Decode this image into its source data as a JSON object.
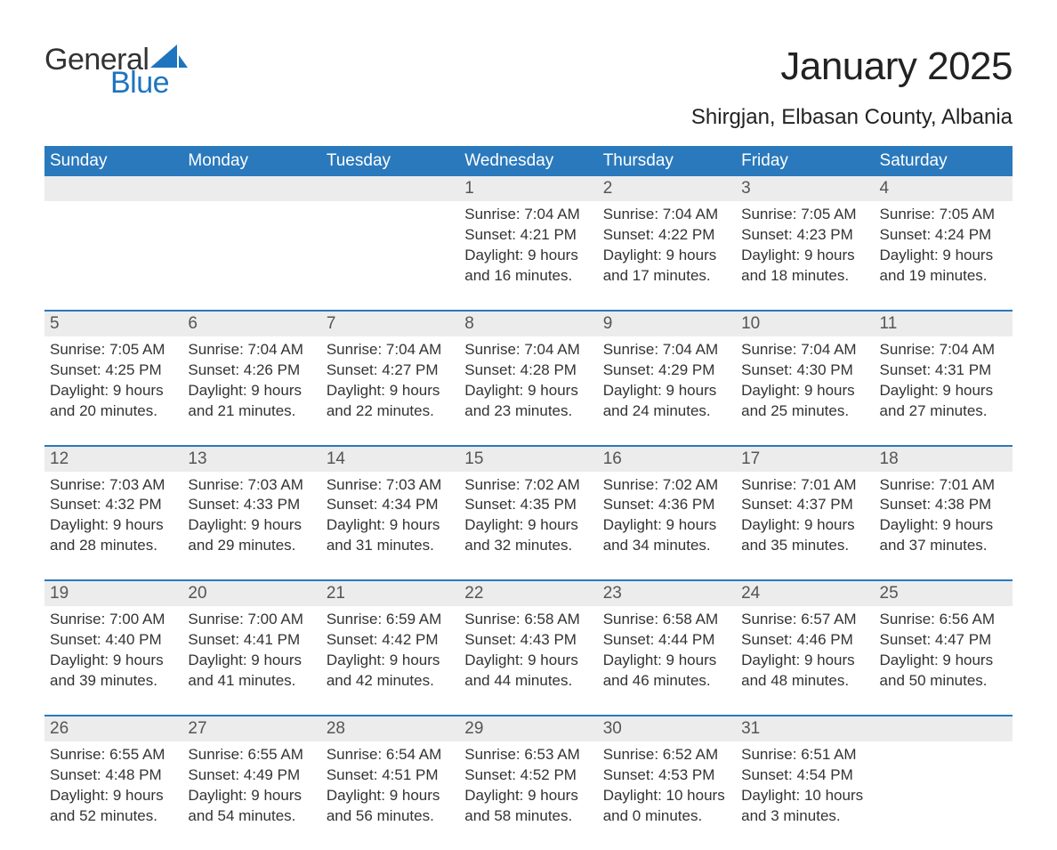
{
  "logo": {
    "top": "General",
    "bottom": "Blue",
    "sail_color": "#1f74bf",
    "top_color": "#333333",
    "bottom_color": "#1f74bf"
  },
  "title": "January 2025",
  "location": "Shirgjan, Elbasan County, Albania",
  "colors": {
    "header_bg": "#2a79bd",
    "header_text": "#ffffff",
    "daynum_bg": "#ececec",
    "daynum_text": "#555555",
    "body_text": "#333333",
    "rule": "#2a79bd",
    "page_bg": "#ffffff"
  },
  "day_headers": [
    "Sunday",
    "Monday",
    "Tuesday",
    "Wednesday",
    "Thursday",
    "Friday",
    "Saturday"
  ],
  "weeks": [
    [
      null,
      null,
      null,
      {
        "n": "1",
        "sr": "7:04 AM",
        "ss": "4:21 PM",
        "dl": "9 hours and 16 minutes."
      },
      {
        "n": "2",
        "sr": "7:04 AM",
        "ss": "4:22 PM",
        "dl": "9 hours and 17 minutes."
      },
      {
        "n": "3",
        "sr": "7:05 AM",
        "ss": "4:23 PM",
        "dl": "9 hours and 18 minutes."
      },
      {
        "n": "4",
        "sr": "7:05 AM",
        "ss": "4:24 PM",
        "dl": "9 hours and 19 minutes."
      }
    ],
    [
      {
        "n": "5",
        "sr": "7:05 AM",
        "ss": "4:25 PM",
        "dl": "9 hours and 20 minutes."
      },
      {
        "n": "6",
        "sr": "7:04 AM",
        "ss": "4:26 PM",
        "dl": "9 hours and 21 minutes."
      },
      {
        "n": "7",
        "sr": "7:04 AM",
        "ss": "4:27 PM",
        "dl": "9 hours and 22 minutes."
      },
      {
        "n": "8",
        "sr": "7:04 AM",
        "ss": "4:28 PM",
        "dl": "9 hours and 23 minutes."
      },
      {
        "n": "9",
        "sr": "7:04 AM",
        "ss": "4:29 PM",
        "dl": "9 hours and 24 minutes."
      },
      {
        "n": "10",
        "sr": "7:04 AM",
        "ss": "4:30 PM",
        "dl": "9 hours and 25 minutes."
      },
      {
        "n": "11",
        "sr": "7:04 AM",
        "ss": "4:31 PM",
        "dl": "9 hours and 27 minutes."
      }
    ],
    [
      {
        "n": "12",
        "sr": "7:03 AM",
        "ss": "4:32 PM",
        "dl": "9 hours and 28 minutes."
      },
      {
        "n": "13",
        "sr": "7:03 AM",
        "ss": "4:33 PM",
        "dl": "9 hours and 29 minutes."
      },
      {
        "n": "14",
        "sr": "7:03 AM",
        "ss": "4:34 PM",
        "dl": "9 hours and 31 minutes."
      },
      {
        "n": "15",
        "sr": "7:02 AM",
        "ss": "4:35 PM",
        "dl": "9 hours and 32 minutes."
      },
      {
        "n": "16",
        "sr": "7:02 AM",
        "ss": "4:36 PM",
        "dl": "9 hours and 34 minutes."
      },
      {
        "n": "17",
        "sr": "7:01 AM",
        "ss": "4:37 PM",
        "dl": "9 hours and 35 minutes."
      },
      {
        "n": "18",
        "sr": "7:01 AM",
        "ss": "4:38 PM",
        "dl": "9 hours and 37 minutes."
      }
    ],
    [
      {
        "n": "19",
        "sr": "7:00 AM",
        "ss": "4:40 PM",
        "dl": "9 hours and 39 minutes."
      },
      {
        "n": "20",
        "sr": "7:00 AM",
        "ss": "4:41 PM",
        "dl": "9 hours and 41 minutes."
      },
      {
        "n": "21",
        "sr": "6:59 AM",
        "ss": "4:42 PM",
        "dl": "9 hours and 42 minutes."
      },
      {
        "n": "22",
        "sr": "6:58 AM",
        "ss": "4:43 PM",
        "dl": "9 hours and 44 minutes."
      },
      {
        "n": "23",
        "sr": "6:58 AM",
        "ss": "4:44 PM",
        "dl": "9 hours and 46 minutes."
      },
      {
        "n": "24",
        "sr": "6:57 AM",
        "ss": "4:46 PM",
        "dl": "9 hours and 48 minutes."
      },
      {
        "n": "25",
        "sr": "6:56 AM",
        "ss": "4:47 PM",
        "dl": "9 hours and 50 minutes."
      }
    ],
    [
      {
        "n": "26",
        "sr": "6:55 AM",
        "ss": "4:48 PM",
        "dl": "9 hours and 52 minutes."
      },
      {
        "n": "27",
        "sr": "6:55 AM",
        "ss": "4:49 PM",
        "dl": "9 hours and 54 minutes."
      },
      {
        "n": "28",
        "sr": "6:54 AM",
        "ss": "4:51 PM",
        "dl": "9 hours and 56 minutes."
      },
      {
        "n": "29",
        "sr": "6:53 AM",
        "ss": "4:52 PM",
        "dl": "9 hours and 58 minutes."
      },
      {
        "n": "30",
        "sr": "6:52 AM",
        "ss": "4:53 PM",
        "dl": "10 hours and 0 minutes."
      },
      {
        "n": "31",
        "sr": "6:51 AM",
        "ss": "4:54 PM",
        "dl": "10 hours and 3 minutes."
      },
      null
    ]
  ],
  "labels": {
    "sunrise": "Sunrise: ",
    "sunset": "Sunset: ",
    "daylight": "Daylight: "
  },
  "fonts": {
    "title_pt": 44,
    "location_pt": 24,
    "dayhead_pt": 19,
    "daynum_pt": 19,
    "body_pt": 17
  }
}
